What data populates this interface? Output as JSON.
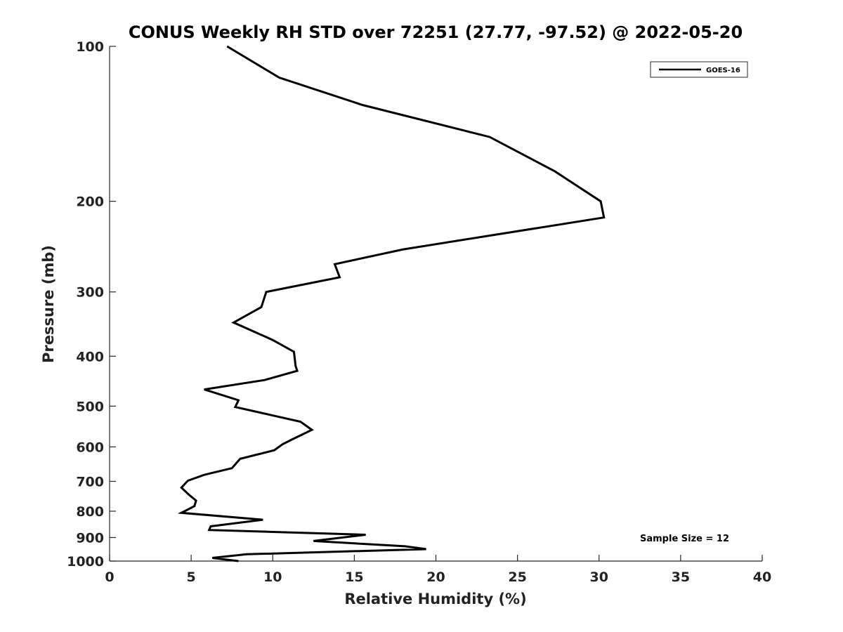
{
  "chart_data": {
    "type": "line",
    "title": "CONUS Weekly RH STD over 72251 (27.77, -97.52) @ 2022-05-20",
    "xlabel": "Relative Humidity (%)",
    "ylabel": "Pressure (mb)",
    "xlim": [
      0,
      40
    ],
    "ylim": [
      100,
      1000
    ],
    "y_scale": "log",
    "y_reversed": true,
    "grid": false,
    "legend_position": "top-right",
    "x_ticks": [
      "0",
      "5",
      "10",
      "15",
      "20",
      "25",
      "30",
      "35",
      "40"
    ],
    "y_ticks": [
      "100",
      "200",
      "300",
      "400",
      "500",
      "600",
      "700",
      "800",
      "900",
      "1000"
    ],
    "annotation": "Sample Size = 12",
    "series": [
      {
        "name": "GOES-16",
        "color": "#000000",
        "points": [
          [
            7.2,
            100
          ],
          [
            10.4,
            115
          ],
          [
            15.5,
            130
          ],
          [
            23.3,
            150
          ],
          [
            27.3,
            175
          ],
          [
            30.1,
            200
          ],
          [
            30.3,
            215
          ],
          [
            18.0,
            248
          ],
          [
            13.8,
            265
          ],
          [
            14.1,
            281
          ],
          [
            9.6,
            300
          ],
          [
            9.3,
            321
          ],
          [
            7.6,
            344
          ],
          [
            10.0,
            372
          ],
          [
            11.3,
            392
          ],
          [
            11.4,
            418
          ],
          [
            11.5,
            427
          ],
          [
            9.5,
            445
          ],
          [
            5.8,
            464
          ],
          [
            7.9,
            487
          ],
          [
            7.7,
            502
          ],
          [
            11.7,
            536
          ],
          [
            12.4,
            556
          ],
          [
            11.2,
            580
          ],
          [
            10.6,
            593
          ],
          [
            10.1,
            609
          ],
          [
            8.0,
            633
          ],
          [
            7.5,
            660
          ],
          [
            5.8,
            680
          ],
          [
            4.8,
            698
          ],
          [
            4.4,
            720
          ],
          [
            4.9,
            745
          ],
          [
            5.3,
            763
          ],
          [
            5.2,
            782
          ],
          [
            4.4,
            806
          ],
          [
            9.4,
            831
          ],
          [
            6.2,
            856
          ],
          [
            6.1,
            870
          ],
          [
            15.7,
            889
          ],
          [
            12.5,
            914
          ],
          [
            18.1,
            936
          ],
          [
            19.4,
            948
          ],
          [
            8.4,
            970
          ],
          [
            6.3,
            986
          ],
          [
            7.9,
            1000
          ]
        ]
      }
    ]
  }
}
